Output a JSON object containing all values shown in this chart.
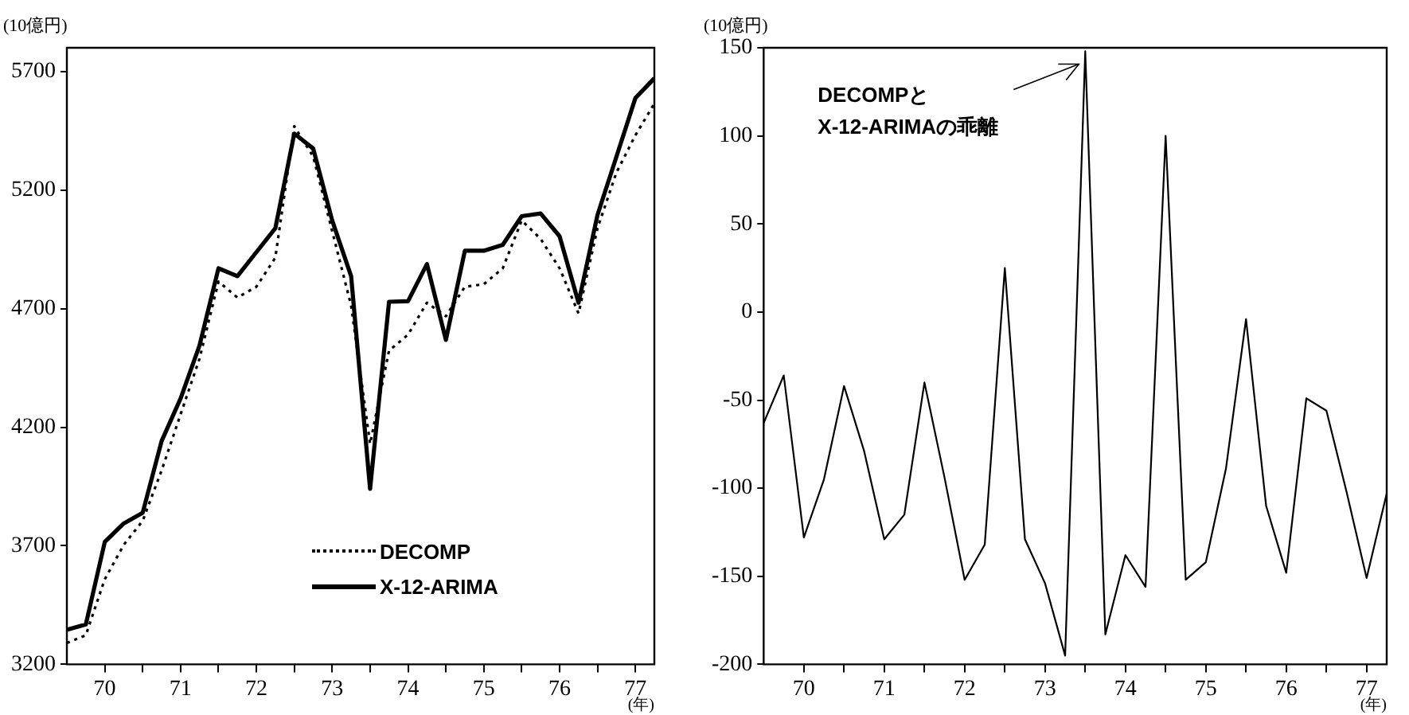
{
  "chart_data": [
    {
      "type": "line",
      "ylabel": "(10億円)",
      "xlabel": "(年)",
      "grid": false,
      "legend": "bottom",
      "x": [
        69.5,
        69.75,
        70,
        70.25,
        70.5,
        70.75,
        71,
        71.25,
        71.5,
        71.75,
        72,
        72.25,
        72.5,
        72.75,
        73,
        73.25,
        73.5,
        73.75,
        74,
        74.25,
        74.5,
        74.75,
        75,
        75.25,
        75.5,
        75.75,
        76,
        76.25,
        76.5,
        76.75,
        77,
        77.25
      ],
      "xlim": [
        69.5,
        77.25
      ],
      "xticks": [
        70,
        {
          "value": 70.5,
          "label": null
        },
        71,
        {
          "value": 71.5,
          "label": null
        },
        72,
        {
          "value": 72.5,
          "label": null
        },
        73,
        {
          "value": 73.5,
          "label": null
        },
        74,
        {
          "value": 74.5,
          "label": null
        },
        75,
        {
          "value": 75.5,
          "label": null
        },
        76,
        {
          "value": 76.5,
          "label": null
        },
        77
      ],
      "ylim": [
        3200,
        5800
      ],
      "yticks": [
        3200,
        3700,
        4200,
        4700,
        5200,
        5700
      ],
      "series": [
        {
          "name": "DECOMP",
          "color": "#000000",
          "line_style": "dotted",
          "values": [
            3290,
            3323,
            3559,
            3704,
            3805,
            4018,
            4254,
            4489,
            4814,
            4747,
            4792,
            4915,
            5469,
            5341,
            5027,
            4713,
            4130,
            4523,
            4590,
            4725,
            4668,
            4792,
            4803,
            4870,
            5072,
            4994,
            4870,
            4680,
            5039,
            5274,
            5431,
            5565
          ]
        },
        {
          "name": "X-12-ARIMA",
          "color": "#000000",
          "line_style": "solid",
          "values": [
            3346,
            3368,
            3716,
            3794,
            3839,
            4142,
            4321,
            4545,
            4870,
            4837,
            4938,
            5039,
            5438,
            5375,
            5072,
            4837,
            3940,
            4729,
            4731,
            4888,
            4568,
            4944,
            4944,
            4969,
            5090,
            5101,
            5005,
            4725,
            5095,
            5341,
            5588,
            5671
          ]
        }
      ]
    },
    {
      "type": "line",
      "ylabel": "(10億円)",
      "xlabel": "(年)",
      "grid": false,
      "color": "#000000",
      "x": [
        69.5,
        69.75,
        70,
        70.25,
        70.5,
        70.75,
        71,
        71.25,
        71.5,
        71.75,
        72,
        72.25,
        72.5,
        72.75,
        73,
        73.25,
        73.5,
        73.75,
        74,
        74.25,
        74.5,
        74.75,
        75,
        75.25,
        75.5,
        75.75,
        76,
        76.25,
        76.5,
        76.75,
        77,
        77.25
      ],
      "xlim": [
        69.5,
        77.25
      ],
      "xticks": [
        70,
        {
          "value": 70.5,
          "label": null
        },
        71,
        {
          "value": 71.5,
          "label": null
        },
        72,
        {
          "value": 72.5,
          "label": null
        },
        73,
        {
          "value": 73.5,
          "label": null
        },
        74,
        {
          "value": 74.5,
          "label": null
        },
        75,
        {
          "value": 75.5,
          "label": null
        },
        76,
        {
          "value": 76.5,
          "label": null
        },
        77
      ],
      "ylim": [
        -200,
        150
      ],
      "yticks": [
        -200,
        -150,
        -100,
        -50,
        0,
        50,
        100,
        150
      ],
      "values": [
        -63,
        -36,
        -128,
        -95,
        -42,
        -79,
        -129,
        -115,
        -40,
        -94,
        -152,
        -132,
        25,
        -129,
        -154,
        -195,
        148,
        -183,
        -138,
        -156,
        100,
        -152,
        -142,
        -89,
        -4,
        -110,
        -148,
        -49,
        -56,
        -102,
        -151,
        -103
      ],
      "annotations": [
        {
          "text": "DECOMPと\nX-12-ARIMAの乖離",
          "x": 73.5,
          "y": 148
        }
      ]
    }
  ]
}
